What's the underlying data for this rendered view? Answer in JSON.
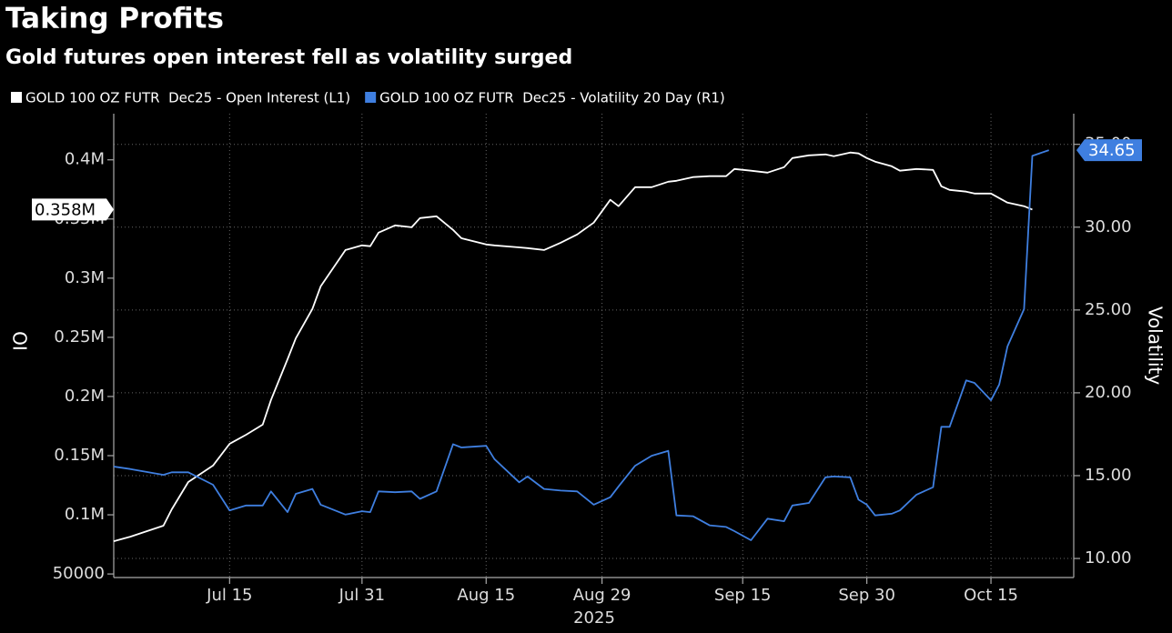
{
  "chart_data": {
    "type": "line",
    "title": "Taking Profits",
    "subtitle": "Gold futures open interest fell as volatility surged",
    "ylabel": "OI",
    "y2label": "Volatility",
    "xlabel": "2025",
    "x": [
      "2025-07-01",
      "2025-07-03",
      "2025-07-07",
      "2025-07-08",
      "2025-07-10",
      "2025-07-13",
      "2025-07-15",
      "2025-07-17",
      "2025-07-19",
      "2025-07-20",
      "2025-07-22",
      "2025-07-23",
      "2025-07-25",
      "2025-07-26",
      "2025-07-29",
      "2025-07-31",
      "2025-08-01",
      "2025-08-02",
      "2025-08-04",
      "2025-08-06",
      "2025-08-07",
      "2025-08-09",
      "2025-08-11",
      "2025-08-12",
      "2025-08-15",
      "2025-08-16",
      "2025-08-19",
      "2025-08-20",
      "2025-08-22",
      "2025-08-24",
      "2025-08-26",
      "2025-08-28",
      "2025-08-30",
      "2025-08-31",
      "2025-09-02",
      "2025-09-04",
      "2025-09-06",
      "2025-09-07",
      "2025-09-09",
      "2025-09-11",
      "2025-09-13",
      "2025-09-14",
      "2025-09-16",
      "2025-09-18",
      "2025-09-20",
      "2025-09-21",
      "2025-09-23",
      "2025-09-25",
      "2025-09-26",
      "2025-09-28",
      "2025-09-29",
      "2025-09-30",
      "2025-10-01",
      "2025-10-03",
      "2025-10-04",
      "2025-10-06",
      "2025-10-08",
      "2025-10-09",
      "2025-10-10",
      "2025-10-12",
      "2025-10-13",
      "2025-10-15",
      "2025-10-16",
      "2025-10-17",
      "2025-10-19",
      "2025-10-20",
      "2025-10-22"
    ],
    "series": [
      {
        "name": "GOLD 100 OZ FUTR  Dec25 - Open Interest (L1)",
        "color": "#ffffff",
        "axis": "y",
        "values": [
          77700,
          81500,
          90800,
          104600,
          127700,
          141600,
          160000,
          167700,
          176200,
          197000,
          231500,
          249200,
          274000,
          293000,
          323800,
          327700,
          327000,
          338500,
          344600,
          343000,
          350800,
          352300,
          340800,
          333800,
          328500,
          327700,
          326000,
          325400,
          323800,
          329900,
          336900,
          346900,
          366200,
          360800,
          376900,
          376900,
          381500,
          382300,
          385400,
          386200,
          386200,
          392300,
          390800,
          389200,
          393800,
          401500,
          403800,
          404600,
          403100,
          406200,
          405400,
          401500,
          398500,
          394600,
          390800,
          392300,
          391500,
          377700,
          374600,
          373100,
          371500,
          371500,
          367700,
          363800,
          360800,
          358000,
          null
        ],
        "value_labels": [
          null,
          null,
          null,
          null,
          null,
          null,
          null,
          null,
          null,
          null,
          null,
          null,
          null,
          null,
          null,
          null,
          null,
          null,
          null,
          null,
          null,
          null,
          null,
          null,
          null,
          null,
          null,
          null,
          null,
          null,
          null,
          null,
          null,
          null,
          null,
          null,
          null,
          null,
          null,
          null,
          null,
          null,
          null,
          null,
          null,
          null,
          null,
          null,
          null,
          null,
          null,
          null,
          null,
          null,
          null,
          null,
          null,
          null,
          null,
          null,
          null,
          null,
          null,
          null,
          null,
          "0.358M",
          null
        ]
      },
      {
        "name": "GOLD 100 OZ FUTR  Dec25 - Volatility 20 Day (R1)",
        "color": "#3f7fe0",
        "axis": "y2",
        "values": [
          15.55,
          15.4,
          15.05,
          15.2,
          15.2,
          14.45,
          12.9,
          13.2,
          13.2,
          14.05,
          12.8,
          13.9,
          14.2,
          13.25,
          12.65,
          12.85,
          12.8,
          14.05,
          14.0,
          14.05,
          13.6,
          14.05,
          16.9,
          16.7,
          16.8,
          16.0,
          14.6,
          14.95,
          14.2,
          14.1,
          14.05,
          13.25,
          13.7,
          14.35,
          15.6,
          16.2,
          16.5,
          12.6,
          12.55,
          12.0,
          11.9,
          11.65,
          11.1,
          12.4,
          12.25,
          13.2,
          13.35,
          14.9,
          14.95,
          14.9,
          13.55,
          13.25,
          12.6,
          12.7,
          12.9,
          13.85,
          14.3,
          17.95,
          17.95,
          20.75,
          20.6,
          19.55,
          20.5,
          22.8,
          25.05,
          34.3,
          34.65
        ],
        "value_labels": [
          null,
          null,
          null,
          null,
          null,
          null,
          null,
          null,
          null,
          null,
          null,
          null,
          null,
          null,
          null,
          null,
          null,
          null,
          null,
          null,
          null,
          null,
          null,
          null,
          null,
          null,
          null,
          null,
          null,
          null,
          null,
          null,
          null,
          null,
          null,
          null,
          null,
          null,
          null,
          null,
          null,
          null,
          null,
          null,
          null,
          null,
          null,
          null,
          null,
          null,
          null,
          null,
          null,
          null,
          null,
          null,
          null,
          null,
          null,
          null,
          null,
          null,
          null,
          null,
          null,
          null,
          "34.65"
        ]
      }
    ],
    "xlim": [
      "2025-07-01",
      "2025-10-25"
    ],
    "xticks": [
      {
        "value": "2025-07-15",
        "label": "Jul 15"
      },
      {
        "value": "2025-07-31",
        "label": "Jul 31"
      },
      {
        "value": "2025-08-15",
        "label": "Aug 15"
      },
      {
        "value": "2025-08-29",
        "label": "Aug 29"
      },
      {
        "value": "2025-09-15",
        "label": "Sep 15"
      },
      {
        "value": "2025-09-30",
        "label": "Sep 30"
      },
      {
        "value": "2025-10-15",
        "label": "Oct 15"
      }
    ],
    "ylim": [
      47000,
      439000
    ],
    "yticks": [
      50000,
      {
        "value": 100000,
        "label": "0.1M"
      },
      {
        "value": 150000,
        "label": "0.15M"
      },
      {
        "value": 200000,
        "label": "0.2M"
      },
      {
        "value": 250000,
        "label": "0.25M"
      },
      {
        "value": 300000,
        "label": "0.3M"
      },
      {
        "value": 350000,
        "label": "0.35M"
      },
      {
        "value": 400000,
        "label": "0.4M"
      }
    ],
    "y2lim": [
      8.85,
      36.85
    ],
    "y2ticks": [
      {
        "value": 10,
        "label": "10.00"
      },
      {
        "value": 15,
        "label": "15.00"
      },
      {
        "value": 20,
        "label": "20.00"
      },
      {
        "value": 25,
        "label": "25.00"
      },
      {
        "value": 30,
        "label": "30.00"
      },
      {
        "value": 35,
        "label": "35.00"
      }
    ],
    "grid": true
  }
}
